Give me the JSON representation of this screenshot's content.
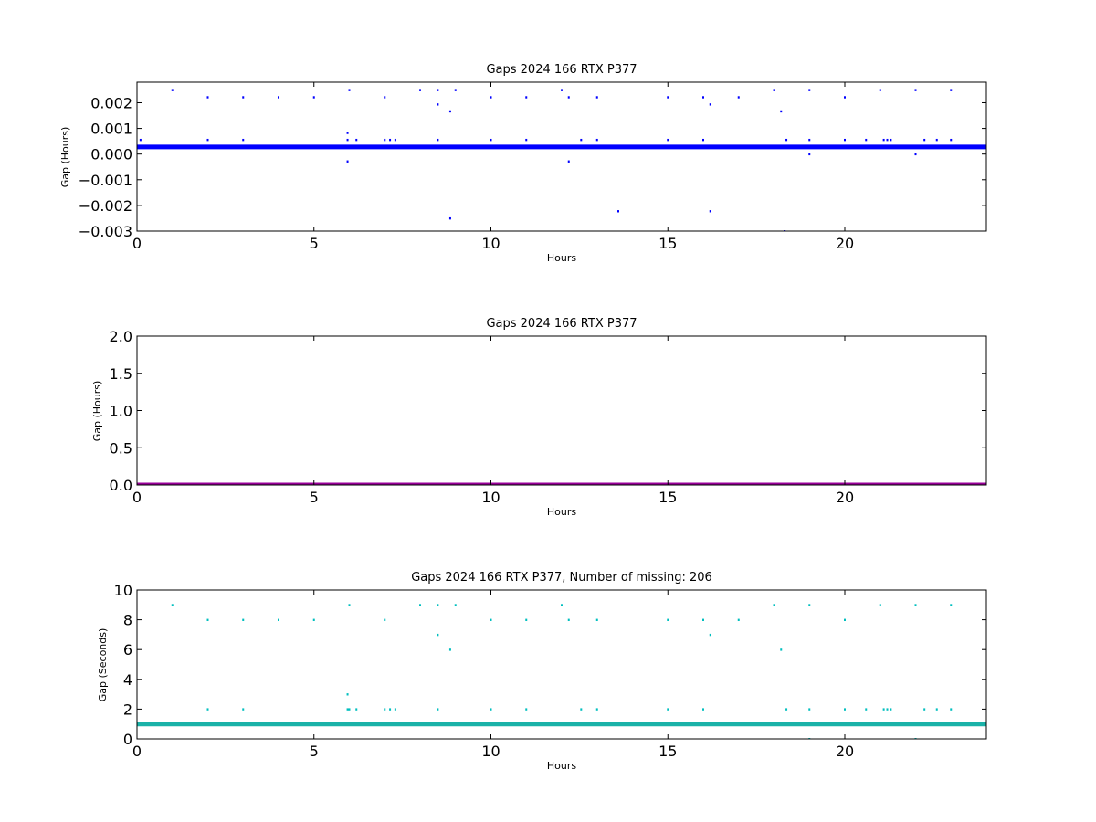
{
  "chart_data": [
    {
      "type": "scatter",
      "title": "Gaps 2024 166 RTX  P377",
      "xlabel": "Hours",
      "ylabel": "Gap (Hours)",
      "xlim": [
        0,
        24
      ],
      "ylim": [
        -0.003,
        0.0028
      ],
      "xticks": [
        0,
        5,
        10,
        15,
        20
      ],
      "xtick_labels": [
        "0",
        "5",
        "10",
        "15",
        "20"
      ],
      "yticks": [
        -0.003,
        -0.002,
        -0.001,
        0.0,
        0.001,
        0.002
      ],
      "ytick_labels": [
        "−0.003",
        "−0.002",
        "−0.001",
        "0.000",
        "0.001",
        "0.002"
      ],
      "grid": false,
      "colors": {
        "points": "#0000ff",
        "baseline": "#0000ff"
      },
      "baseline": {
        "y": 0.00028,
        "x": [
          0,
          24
        ]
      },
      "points": [
        {
          "x": 0.1,
          "y": 0.00056
        },
        {
          "x": 1.0,
          "y": 0.0025
        },
        {
          "x": 2.0,
          "y": 0.00222
        },
        {
          "x": 2.0,
          "y": 0.00056
        },
        {
          "x": 3.0,
          "y": 0.00222
        },
        {
          "x": 3.0,
          "y": 0.00056
        },
        {
          "x": 4.0,
          "y": 0.00222
        },
        {
          "x": 5.0,
          "y": 0.00222
        },
        {
          "x": 5.95,
          "y": 0.00083
        },
        {
          "x": 5.95,
          "y": 0.00056
        },
        {
          "x": 5.95,
          "y": -0.00028
        },
        {
          "x": 6.0,
          "y": 0.0025
        },
        {
          "x": 6.2,
          "y": 0.00056
        },
        {
          "x": 7.0,
          "y": 0.00222
        },
        {
          "x": 7.0,
          "y": 0.00056
        },
        {
          "x": 7.15,
          "y": 0.00056
        },
        {
          "x": 7.3,
          "y": 0.00056
        },
        {
          "x": 8.0,
          "y": 0.0025
        },
        {
          "x": 8.5,
          "y": 0.0025
        },
        {
          "x": 8.5,
          "y": 0.00194
        },
        {
          "x": 8.5,
          "y": 0.00056
        },
        {
          "x": 8.85,
          "y": 0.00167
        },
        {
          "x": 8.85,
          "y": -0.0025
        },
        {
          "x": 9.0,
          "y": 0.0025
        },
        {
          "x": 10.0,
          "y": 0.00222
        },
        {
          "x": 10.0,
          "y": 0.00056
        },
        {
          "x": 11.0,
          "y": 0.00222
        },
        {
          "x": 11.0,
          "y": 0.00056
        },
        {
          "x": 12.0,
          "y": 0.0025
        },
        {
          "x": 12.2,
          "y": 0.00222
        },
        {
          "x": 12.2,
          "y": -0.00028
        },
        {
          "x": 12.55,
          "y": 0.00056
        },
        {
          "x": 13.0,
          "y": 0.00222
        },
        {
          "x": 13.0,
          "y": 0.00056
        },
        {
          "x": 13.6,
          "y": -0.00222
        },
        {
          "x": 15.0,
          "y": 0.00222
        },
        {
          "x": 15.0,
          "y": 0.00056
        },
        {
          "x": 16.0,
          "y": 0.00222
        },
        {
          "x": 16.0,
          "y": 0.00056
        },
        {
          "x": 16.2,
          "y": 0.00194
        },
        {
          "x": 16.2,
          "y": -0.00222
        },
        {
          "x": 17.0,
          "y": 0.00222
        },
        {
          "x": 18.0,
          "y": 0.0025
        },
        {
          "x": 18.2,
          "y": 0.00167
        },
        {
          "x": 18.3,
          "y": -0.003
        },
        {
          "x": 18.35,
          "y": 0.00056
        },
        {
          "x": 19.0,
          "y": 0.0025
        },
        {
          "x": 19.0,
          "y": 0.00056
        },
        {
          "x": 19.0,
          "y": 0.0
        },
        {
          "x": 20.0,
          "y": 0.00222
        },
        {
          "x": 20.0,
          "y": 0.00056
        },
        {
          "x": 20.6,
          "y": 0.00056
        },
        {
          "x": 21.0,
          "y": 0.0025
        },
        {
          "x": 21.1,
          "y": 0.00056
        },
        {
          "x": 21.2,
          "y": 0.00056
        },
        {
          "x": 21.3,
          "y": 0.00056
        },
        {
          "x": 22.0,
          "y": 0.0025
        },
        {
          "x": 22.0,
          "y": 0.0
        },
        {
          "x": 22.25,
          "y": 0.00056
        },
        {
          "x": 22.6,
          "y": 0.00056
        },
        {
          "x": 23.0,
          "y": 0.0025
        },
        {
          "x": 23.0,
          "y": 0.00056
        }
      ]
    },
    {
      "type": "line",
      "title": "Gaps 2024 166 RTX  P377",
      "xlabel": "Hours",
      "ylabel": "Gap (Hours)",
      "xlim": [
        0,
        24
      ],
      "ylim": [
        0,
        2.0
      ],
      "xticks": [
        0,
        5,
        10,
        15,
        20
      ],
      "xtick_labels": [
        "0",
        "5",
        "10",
        "15",
        "20"
      ],
      "yticks": [
        0.0,
        0.5,
        1.0,
        1.5,
        2.0
      ],
      "ytick_labels": [
        "0.0",
        "0.5",
        "1.0",
        "1.5",
        "2.0"
      ],
      "grid": false,
      "colors": {
        "line": "#990099"
      },
      "series": [
        {
          "x": [
            0,
            24
          ],
          "values": [
            0.0,
            0.0
          ]
        }
      ]
    },
    {
      "type": "scatter",
      "title": "Gaps 2024 166 RTX  P377, Number of missing: 206",
      "xlabel": "Hours",
      "ylabel": "Gap (Seconds)",
      "xlim": [
        0,
        24
      ],
      "ylim": [
        0,
        10
      ],
      "xticks": [
        0,
        5,
        10,
        15,
        20
      ],
      "xtick_labels": [
        "0",
        "5",
        "10",
        "15",
        "20"
      ],
      "yticks": [
        0,
        2,
        4,
        6,
        8,
        10
      ],
      "ytick_labels": [
        "0",
        "2",
        "4",
        "6",
        "8",
        "10"
      ],
      "grid": false,
      "colors": {
        "points": "#00bfbf",
        "baseline": "#1ab2a8"
      },
      "baseline": {
        "y": 1,
        "x": [
          0,
          24
        ]
      },
      "points": [
        {
          "x": 1.0,
          "y": 9
        },
        {
          "x": 2.0,
          "y": 8
        },
        {
          "x": 2.0,
          "y": 2
        },
        {
          "x": 3.0,
          "y": 8
        },
        {
          "x": 3.0,
          "y": 2
        },
        {
          "x": 4.0,
          "y": 8
        },
        {
          "x": 5.0,
          "y": 8
        },
        {
          "x": 5.95,
          "y": 3
        },
        {
          "x": 5.95,
          "y": 2
        },
        {
          "x": 6.0,
          "y": 9
        },
        {
          "x": 6.0,
          "y": 2
        },
        {
          "x": 6.2,
          "y": 2
        },
        {
          "x": 7.0,
          "y": 8
        },
        {
          "x": 7.0,
          "y": 2
        },
        {
          "x": 7.15,
          "y": 2
        },
        {
          "x": 7.3,
          "y": 2
        },
        {
          "x": 8.0,
          "y": 9
        },
        {
          "x": 8.5,
          "y": 9
        },
        {
          "x": 8.5,
          "y": 7
        },
        {
          "x": 8.5,
          "y": 2
        },
        {
          "x": 8.85,
          "y": 6
        },
        {
          "x": 9.0,
          "y": 9
        },
        {
          "x": 10.0,
          "y": 8
        },
        {
          "x": 10.0,
          "y": 2
        },
        {
          "x": 11.0,
          "y": 8
        },
        {
          "x": 11.0,
          "y": 2
        },
        {
          "x": 12.0,
          "y": 9
        },
        {
          "x": 12.2,
          "y": 8
        },
        {
          "x": 12.55,
          "y": 2
        },
        {
          "x": 13.0,
          "y": 8
        },
        {
          "x": 13.0,
          "y": 2
        },
        {
          "x": 15.0,
          "y": 8
        },
        {
          "x": 15.0,
          "y": 2
        },
        {
          "x": 16.0,
          "y": 8
        },
        {
          "x": 16.0,
          "y": 2
        },
        {
          "x": 16.2,
          "y": 7
        },
        {
          "x": 17.0,
          "y": 8
        },
        {
          "x": 18.0,
          "y": 9
        },
        {
          "x": 18.2,
          "y": 6
        },
        {
          "x": 18.35,
          "y": 2
        },
        {
          "x": 19.0,
          "y": 9
        },
        {
          "x": 19.0,
          "y": 2
        },
        {
          "x": 19.0,
          "y": 0
        },
        {
          "x": 20.0,
          "y": 8
        },
        {
          "x": 20.0,
          "y": 2
        },
        {
          "x": 20.6,
          "y": 2
        },
        {
          "x": 21.0,
          "y": 9
        },
        {
          "x": 21.1,
          "y": 2
        },
        {
          "x": 21.2,
          "y": 2
        },
        {
          "x": 21.3,
          "y": 2
        },
        {
          "x": 22.0,
          "y": 9
        },
        {
          "x": 22.0,
          "y": 0
        },
        {
          "x": 22.25,
          "y": 2
        },
        {
          "x": 22.6,
          "y": 2
        },
        {
          "x": 23.0,
          "y": 9
        },
        {
          "x": 23.0,
          "y": 2
        }
      ]
    }
  ]
}
